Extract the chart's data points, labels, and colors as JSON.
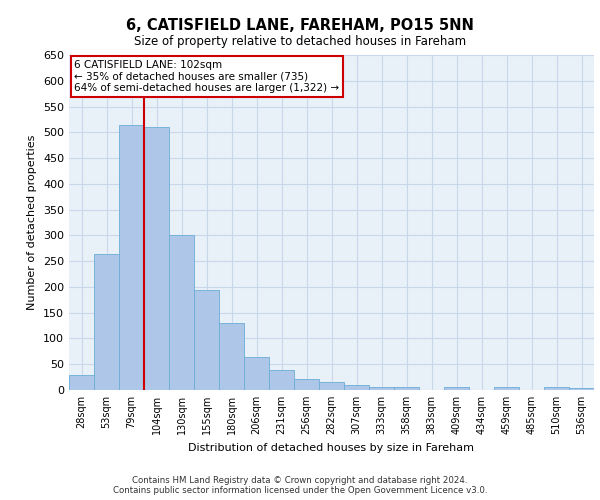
{
  "title": "6, CATISFIELD LANE, FAREHAM, PO15 5NN",
  "subtitle": "Size of property relative to detached houses in Fareham",
  "xlabel": "Distribution of detached houses by size in Fareham",
  "ylabel": "Number of detached properties",
  "categories": [
    "28sqm",
    "53sqm",
    "79sqm",
    "104sqm",
    "130sqm",
    "155sqm",
    "180sqm",
    "206sqm",
    "231sqm",
    "256sqm",
    "282sqm",
    "307sqm",
    "333sqm",
    "358sqm",
    "383sqm",
    "409sqm",
    "434sqm",
    "459sqm",
    "485sqm",
    "510sqm",
    "536sqm"
  ],
  "values": [
    30,
    263,
    515,
    510,
    300,
    195,
    130,
    65,
    38,
    22,
    15,
    10,
    5,
    5,
    0,
    5,
    0,
    5,
    0,
    5,
    3
  ],
  "bar_color": "#aec6e8",
  "bar_edge_color": "#6badd6",
  "annotation_line1": "6 CATISFIELD LANE: 102sqm",
  "annotation_line2": "← 35% of detached houses are smaller (735)",
  "annotation_line3": "64% of semi-detached houses are larger (1,322) →",
  "annotation_box_color": "#ffffff",
  "annotation_box_edge": "#cc0000",
  "vline_color": "#cc0000",
  "grid_color": "#c8d8ea",
  "background_color": "#e8f0f8",
  "ylim": [
    0,
    650
  ],
  "footer_line1": "Contains HM Land Registry data © Crown copyright and database right 2024.",
  "footer_line2": "Contains public sector information licensed under the Open Government Licence v3.0."
}
